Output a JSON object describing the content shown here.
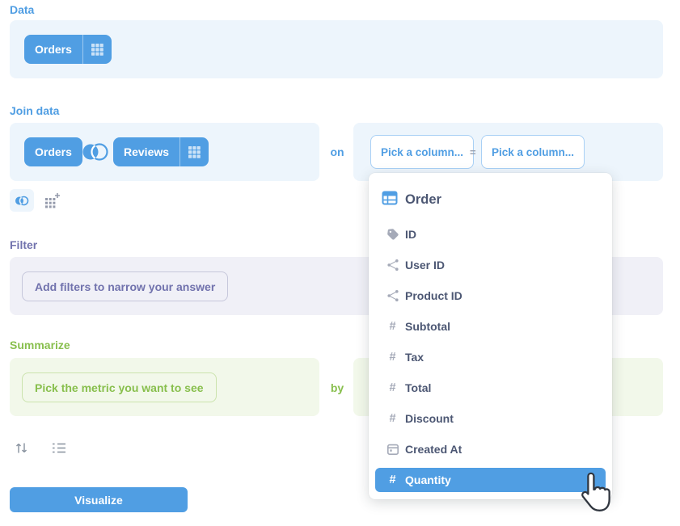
{
  "colors": {
    "brand": "#509EE3",
    "filter_accent": "#7172AD",
    "summarize_accent": "#88BF4D",
    "text_dark": "#4C5773",
    "panel_blue": "#EDF5FC",
    "panel_gray": "#F0F0F7",
    "panel_green": "#F2F8EA"
  },
  "data_section": {
    "title": "Data",
    "table": "Orders"
  },
  "join_section": {
    "title": "Join data",
    "left_table": "Orders",
    "right_table": "Reviews",
    "on_label": "on",
    "left_pick_placeholder": "Pick a column...",
    "operator": "=",
    "right_pick_placeholder": "Pick a column..."
  },
  "filter_section": {
    "title": "Filter",
    "add_filters_label": "Add filters to narrow your answer"
  },
  "summarize_section": {
    "title": "Summarize",
    "pick_metric_label": "Pick the metric you want to see",
    "by_label": "by"
  },
  "column_dropdown": {
    "table_name": "Order",
    "items": [
      {
        "label": "ID",
        "icon": "tag-icon",
        "selected": false
      },
      {
        "label": "User ID",
        "icon": "share-icon",
        "selected": false
      },
      {
        "label": "Product ID",
        "icon": "share-icon",
        "selected": false
      },
      {
        "label": "Subtotal",
        "icon": "hash-icon",
        "selected": false
      },
      {
        "label": "Tax",
        "icon": "hash-icon",
        "selected": false
      },
      {
        "label": "Total",
        "icon": "hash-icon",
        "selected": false
      },
      {
        "label": "Discount",
        "icon": "hash-icon",
        "selected": false
      },
      {
        "label": "Created At",
        "icon": "calendar-icon",
        "selected": false
      },
      {
        "label": "Quantity",
        "icon": "hash-icon",
        "selected": true
      }
    ]
  },
  "footer": {
    "visualize_label": "Visualize"
  }
}
